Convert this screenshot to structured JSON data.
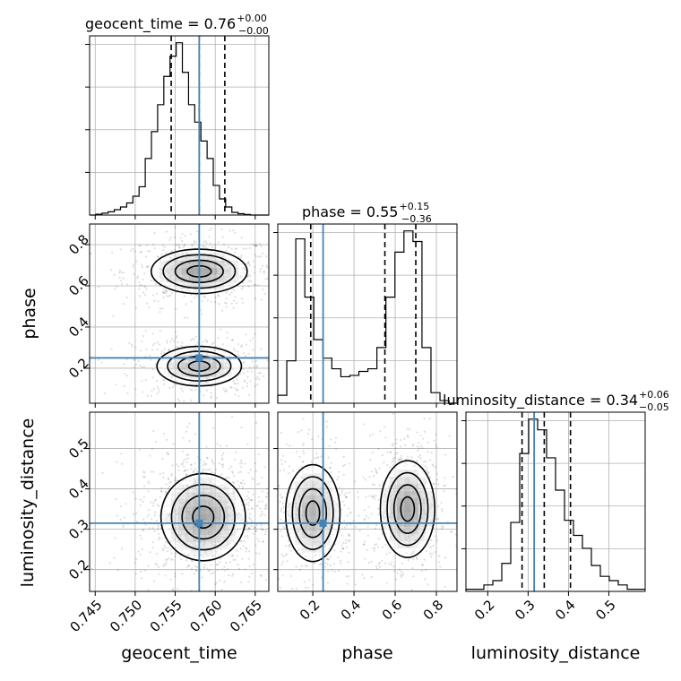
{
  "chart_data": {
    "type": "corner",
    "truth_color": "#4682b4",
    "quantile_style": "dashed",
    "parameters": [
      {
        "name": "geocent_time",
        "median": 0.758,
        "quantiles": [
          0.7545,
          0.758,
          0.7612
        ],
        "truth": 0.758,
        "range": [
          0.7443,
          0.7667
        ],
        "ticks": [
          0.745,
          0.75,
          0.755,
          0.76,
          0.765
        ],
        "tick_labels": [
          "0.745",
          "0.750",
          "0.755",
          "0.760",
          "0.765"
        ],
        "title": {
          "base": "geocent_time = 0.76",
          "plus": "+0.00",
          "minus": "−0.00"
        },
        "hist_bins_left": 0.7443,
        "hist_bin_width": 0.000773,
        "hist_values": [
          0,
          0.3,
          0.7,
          1.2,
          2,
          3,
          4.5,
          7,
          10.5,
          21,
          31,
          41,
          51.5,
          59,
          64,
          53,
          41,
          34.5,
          27.5,
          21,
          11,
          6,
          3,
          1,
          0.5,
          0.2,
          0,
          0,
          0
        ]
      },
      {
        "name": "phase",
        "median": 0.55,
        "quantiles": [
          0.19,
          0.55,
          0.7
        ],
        "truth": 0.25,
        "range": [
          0.03,
          0.9
        ],
        "ticks": [
          0.2,
          0.4,
          0.6,
          0.8
        ],
        "tick_labels": [
          "0.2",
          "0.4",
          "0.6",
          "0.8"
        ],
        "title": {
          "base": "phase = 0.55",
          "plus": "+0.15",
          "minus": "−0.36"
        },
        "hist_bins_left": 0.03,
        "hist_bin_width": 0.04375,
        "hist_values": [
          3,
          16,
          62,
          40,
          24,
          17,
          13,
          10,
          10.5,
          12,
          13,
          21,
          40,
          57,
          65,
          61,
          21,
          4,
          1,
          0
        ]
      },
      {
        "name": "luminosity_distance",
        "median": 0.34,
        "quantiles": [
          0.285,
          0.34,
          0.405
        ],
        "truth": 0.315,
        "range": [
          0.146,
          0.59
        ],
        "ticks": [
          0.2,
          0.3,
          0.4,
          0.5
        ],
        "tick_labels": [
          "0.2",
          "0.3",
          "0.4",
          "0.5"
        ],
        "title": {
          "base": "luminosity_distance = 0.34",
          "plus": "+0.06",
          "minus": "−0.05"
        },
        "hist_bins_left": 0.146,
        "hist_bin_width": 0.0222,
        "hist_values": [
          1,
          1,
          3,
          5,
          13,
          32,
          64,
          80,
          75,
          62,
          47,
          33,
          26,
          20,
          12,
          7,
          5,
          3,
          1,
          1
        ]
      }
    ],
    "pairs": [
      {
        "x": "geocent_time",
        "y": "phase",
        "modes": [
          {
            "cx": 0.758,
            "cy": 0.67,
            "sx": 0.0025,
            "sy": 0.045,
            "w": 1.0
          },
          {
            "cx": 0.758,
            "cy": 0.21,
            "sx": 0.0022,
            "sy": 0.04,
            "w": 0.75
          }
        ]
      },
      {
        "x": "geocent_time",
        "y": "luminosity_distance",
        "modes": [
          {
            "cx": 0.7585,
            "cy": 0.33,
            "sx": 0.0022,
            "sy": 0.045,
            "w": 1.0
          }
        ]
      },
      {
        "x": "phase",
        "y": "luminosity_distance",
        "modes": [
          {
            "cx": 0.2,
            "cy": 0.34,
            "sx": 0.055,
            "sy": 0.05,
            "w": 0.85
          },
          {
            "cx": 0.66,
            "cy": 0.35,
            "sx": 0.055,
            "sy": 0.05,
            "w": 1.0
          }
        ]
      }
    ]
  }
}
